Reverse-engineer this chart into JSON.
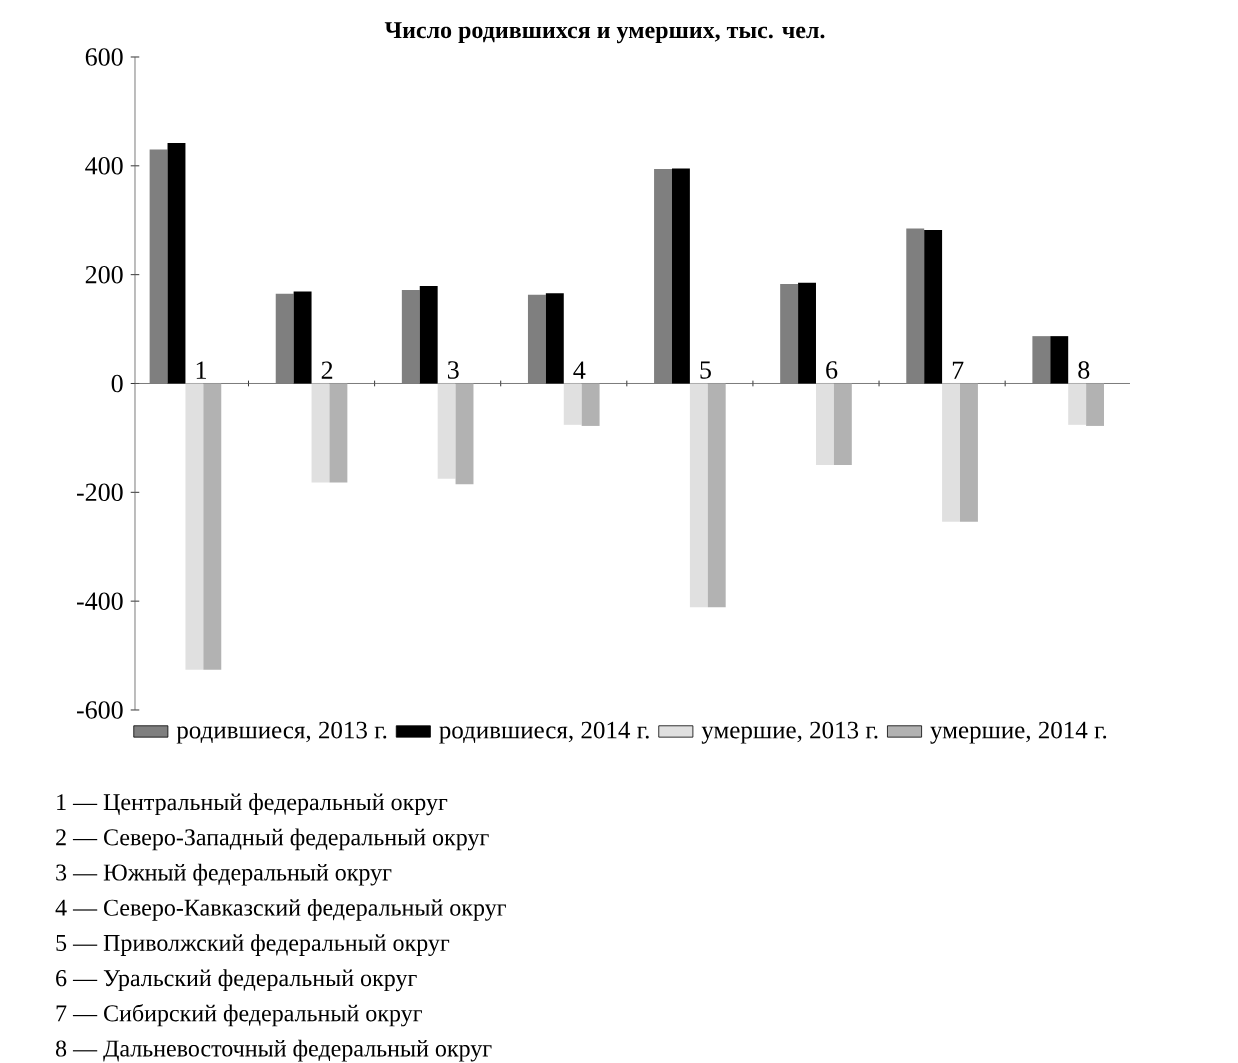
{
  "chart_data": {
    "type": "bar",
    "title": "Число родившихся и умерших, тыс. чел.",
    "categories": [
      "1",
      "2",
      "3",
      "4",
      "5",
      "6",
      "7",
      "8"
    ],
    "series": [
      {
        "name": "родившиеся, 2013 г.",
        "color": "#7f7f7f",
        "values": [
          430,
          165,
          172,
          163,
          394,
          183,
          285,
          87
        ]
      },
      {
        "name": "родившиеся, 2014 г.",
        "color": "#000000",
        "values": [
          442,
          169,
          179,
          166,
          395,
          185,
          282,
          87
        ]
      },
      {
        "name": "умершие, 2013 г.",
        "color": "#e0e0e0",
        "values": [
          -526,
          -182,
          -175,
          -76,
          -411,
          -150,
          -254,
          -76
        ]
      },
      {
        "name": "умершие, 2014 г.",
        "color": "#b2b2b2",
        "values": [
          -526,
          -182,
          -185,
          -78,
          -411,
          -150,
          -254,
          -78
        ]
      }
    ],
    "ylim": [
      -600,
      600
    ],
    "yticks": [
      -600,
      -400,
      -200,
      0,
      200,
      400,
      600
    ],
    "legend": "bottom",
    "annotations": [
      "1 — Центральный федеральный округ",
      "2 — Северо-Западный федеральный округ",
      "3 — Южный федеральный округ",
      "4 — Северо-Кавказский федеральный округ",
      "5 — Приволжский федеральный округ",
      "6 — Уральский федеральный округ",
      "7 — Сибирский федеральный округ",
      "8 — Дальневосточный федеральный округ"
    ]
  }
}
